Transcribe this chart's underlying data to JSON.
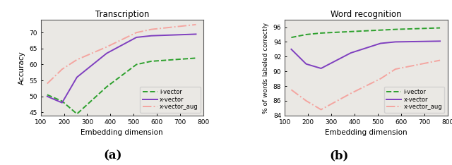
{
  "x": [
    128,
    192,
    256,
    384,
    512,
    576,
    768
  ],
  "trans_ivector": [
    50.5,
    48.5,
    44.5,
    53.0,
    60.0,
    61.0,
    62.0
  ],
  "trans_xvector": [
    50.0,
    48.0,
    56.0,
    63.5,
    68.5,
    69.0,
    69.5
  ],
  "trans_xvector_aug": [
    54.0,
    58.5,
    61.5,
    65.5,
    70.0,
    71.0,
    72.5
  ],
  "word_ivector": [
    94.6,
    95.0,
    95.2,
    95.4,
    95.6,
    95.7,
    95.9
  ],
  "word_xvector": [
    93.0,
    91.0,
    90.4,
    92.5,
    93.8,
    94.0,
    94.1
  ],
  "word_xvector_aug": [
    87.5,
    86.0,
    84.8,
    87.0,
    89.0,
    90.3,
    91.5
  ],
  "color_ivector": "#2ca02c",
  "color_xvector": "#7f3fbf",
  "color_xvector_aug": "#f4a5a0",
  "bg_color": "#eae8e4",
  "title_a": "Transcription",
  "title_b": "Word recognition",
  "xlabel": "Embedding dimension",
  "ylabel_a": "Accuracy",
  "ylabel_b": "% of words labeled correctly",
  "label_a": "(a)",
  "label_b": "(b)",
  "legend_ivector": "i-vector",
  "legend_xvector": "x-vector",
  "legend_xvector_aug": "x-vector_aug",
  "ylim_a": [
    44,
    74
  ],
  "ylim_b": [
    84,
    97
  ],
  "yticks_a": [
    45,
    50,
    55,
    60,
    65,
    70
  ],
  "yticks_b": [
    84,
    86,
    88,
    90,
    92,
    94,
    96
  ],
  "xticks": [
    100,
    200,
    300,
    400,
    500,
    600,
    700,
    800
  ],
  "xlim": [
    100,
    800
  ]
}
